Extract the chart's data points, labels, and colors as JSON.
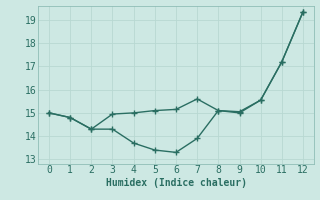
{
  "line1_x": [
    0,
    1,
    2,
    3,
    4,
    5,
    6,
    7,
    8,
    9,
    10,
    11,
    12
  ],
  "line1_y": [
    15.0,
    14.8,
    14.3,
    14.95,
    15.0,
    15.1,
    15.15,
    15.6,
    15.1,
    15.05,
    15.55,
    17.2,
    19.35
  ],
  "line2_x": [
    0,
    1,
    2,
    3,
    4,
    5,
    6,
    7,
    8,
    9,
    10,
    11,
    12
  ],
  "line2_y": [
    15.0,
    14.8,
    14.3,
    14.3,
    13.7,
    13.4,
    13.3,
    13.9,
    15.1,
    15.0,
    15.55,
    17.2,
    19.35
  ],
  "color": "#2a6e62",
  "bg_color": "#cde8e3",
  "grid_color": "#a8ccC6",
  "xlabel": "Humidex (Indice chaleur)",
  "ylim": [
    12.8,
    19.6
  ],
  "xlim": [
    -0.5,
    12.5
  ],
  "yticks": [
    13,
    14,
    15,
    16,
    17,
    18,
    19
  ],
  "xticks": [
    0,
    1,
    2,
    3,
    4,
    5,
    6,
    7,
    8,
    9,
    10,
    11,
    12
  ],
  "xlabel_fontsize": 7,
  "tick_fontsize": 7,
  "line_width": 1.0,
  "marker_size": 4.0,
  "marker": "+"
}
